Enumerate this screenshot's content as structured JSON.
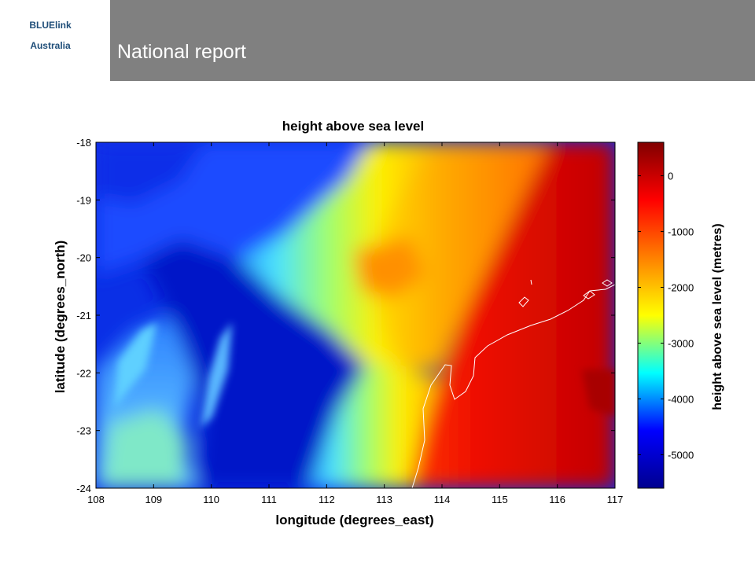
{
  "header": {
    "brand_line1": "BLUElink",
    "brand_line2": "Australia",
    "title": "National report"
  },
  "chart_data": {
    "type": "heatmap",
    "title": "height above sea level",
    "xlabel": "longitude (degrees_east)",
    "ylabel": "latitude (degrees_north)",
    "xlim": [
      108,
      117
    ],
    "ylim": [
      -24,
      -18
    ],
    "xticks": [
      "108",
      "109",
      "110",
      "111",
      "112",
      "113",
      "114",
      "115",
      "116",
      "117"
    ],
    "yticks": [
      "-18",
      "-19",
      "-20",
      "-21",
      "-22",
      "-23",
      "-24"
    ],
    "colorbar": {
      "label": "height above sea level (metres)",
      "range": [
        -5600,
        600
      ],
      "ticks": [
        "0",
        "-1000",
        "-2000",
        "-3000",
        "-4000",
        "-5000"
      ],
      "colormap": [
        "#00008f",
        "#0000ff",
        "#00ffff",
        "#ffff00",
        "#ff8000",
        "#ff0000",
        "#800000"
      ]
    },
    "coastline_color": "#ffffff",
    "grid": false
  }
}
